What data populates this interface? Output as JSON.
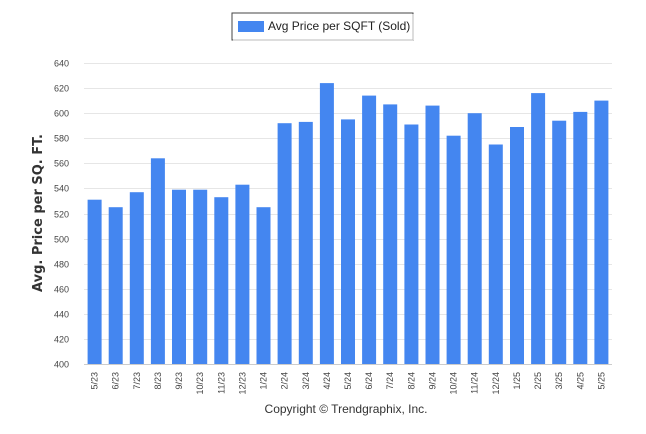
{
  "chart_data": {
    "type": "bar",
    "ylabel": "Avg. Price per SQ. FT.",
    "ylim": [
      400,
      640
    ],
    "yticks": [
      400,
      420,
      440,
      460,
      480,
      500,
      520,
      540,
      560,
      580,
      600,
      620,
      640
    ],
    "grid": true,
    "legend_position": "top-center",
    "categories": [
      "5/23",
      "6/23",
      "7/23",
      "8/23",
      "9/23",
      "10/23",
      "11/23",
      "12/23",
      "1/24",
      "2/24",
      "3/24",
      "4/24",
      "5/24",
      "6/24",
      "7/24",
      "8/24",
      "9/24",
      "10/24",
      "11/24",
      "12/24",
      "1/25",
      "2/25",
      "3/25",
      "4/25",
      "5/25"
    ],
    "series": [
      {
        "name": "Avg Price per SQFT (Sold)",
        "color": "#4486F0",
        "values": [
          531,
          525,
          537,
          564,
          539,
          539,
          533,
          543,
          525,
          592,
          593,
          624,
          595,
          614,
          607,
          591,
          606,
          582,
          600,
          575,
          589,
          616,
          594,
          601,
          610
        ]
      }
    ]
  },
  "copyright": "Copyright © Trendgraphix, Inc."
}
